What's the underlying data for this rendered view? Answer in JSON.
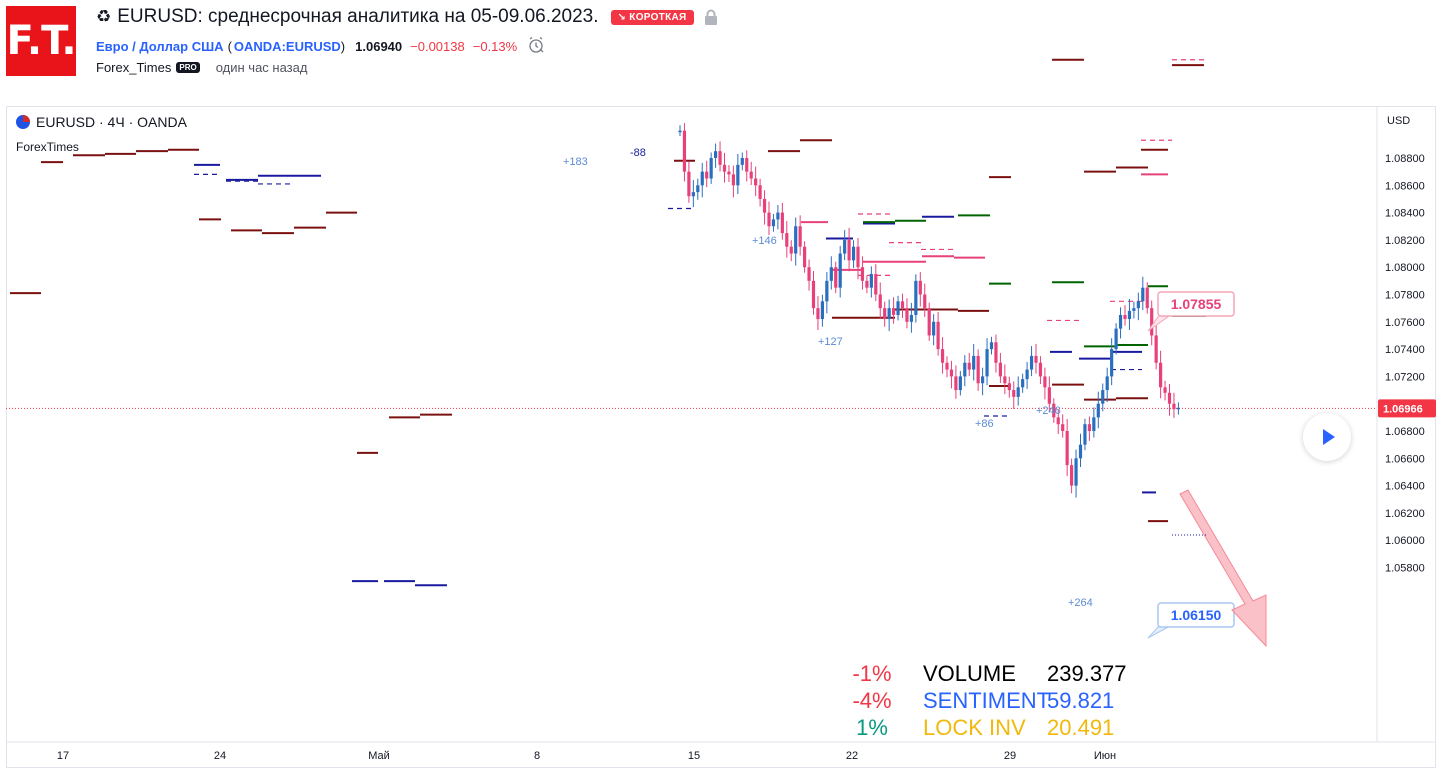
{
  "header": {
    "logo_text": "F.T.",
    "recycle_icon": "♻",
    "title": "EURUSD: среднесрочная аналитика на 05-09.06.2023.",
    "badge": "↘ КОРОТКАЯ",
    "symbol_name": "Евро / Доллар США",
    "symbol_code": "OANDA:EURUSD",
    "price": "1.06940",
    "change": "−0.00138",
    "change_pct": "−0.13%",
    "author": "Forex_Times",
    "pro_badge": "PRO",
    "time_ago": "один час назад"
  },
  "chart": {
    "legend": "EURUSD · 4Ч · OANDA",
    "indicator": "ForexTimes",
    "currency": "USD",
    "price_labels": [
      "1.08800",
      "1.08600",
      "1.08400",
      "1.08200",
      "1.08000",
      "1.07800",
      "1.07600",
      "1.07400",
      "1.07200",
      "1.07000",
      "1.06800",
      "1.06600",
      "1.06400",
      "1.06200",
      "1.06000",
      "1.05800"
    ],
    "current_price": "1.06966",
    "date_labels": [
      "17",
      "24",
      "Май",
      "8",
      "15",
      "22",
      "29",
      "Июн"
    ],
    "callout_high": "1.07855",
    "callout_low": "1.06150",
    "annotations": [
      "+183",
      "-88",
      "+146",
      "+127",
      "+86",
      "+246",
      "+264"
    ]
  },
  "stats": [
    {
      "pct": "-1%",
      "label": "VOLUME",
      "value": "239.377",
      "pct_color": "#f23645",
      "label_color": "#000000"
    },
    {
      "pct": "-4%",
      "label": "SENTIMENT",
      "value": "59.821",
      "pct_color": "#f23645",
      "label_color": "#2962ff"
    },
    {
      "pct": "1%",
      "label": "LOCK INV",
      "value": "20.491",
      "pct_color": "#089981",
      "label_color": "#f0b90b"
    }
  ],
  "colors": {
    "accent": "#2962ff",
    "bear": "#f23645",
    "bull": "#2962ff",
    "maroon": "#7b1010",
    "candle_up": "#2a6fbf",
    "candle_down": "#e8407a"
  }
}
